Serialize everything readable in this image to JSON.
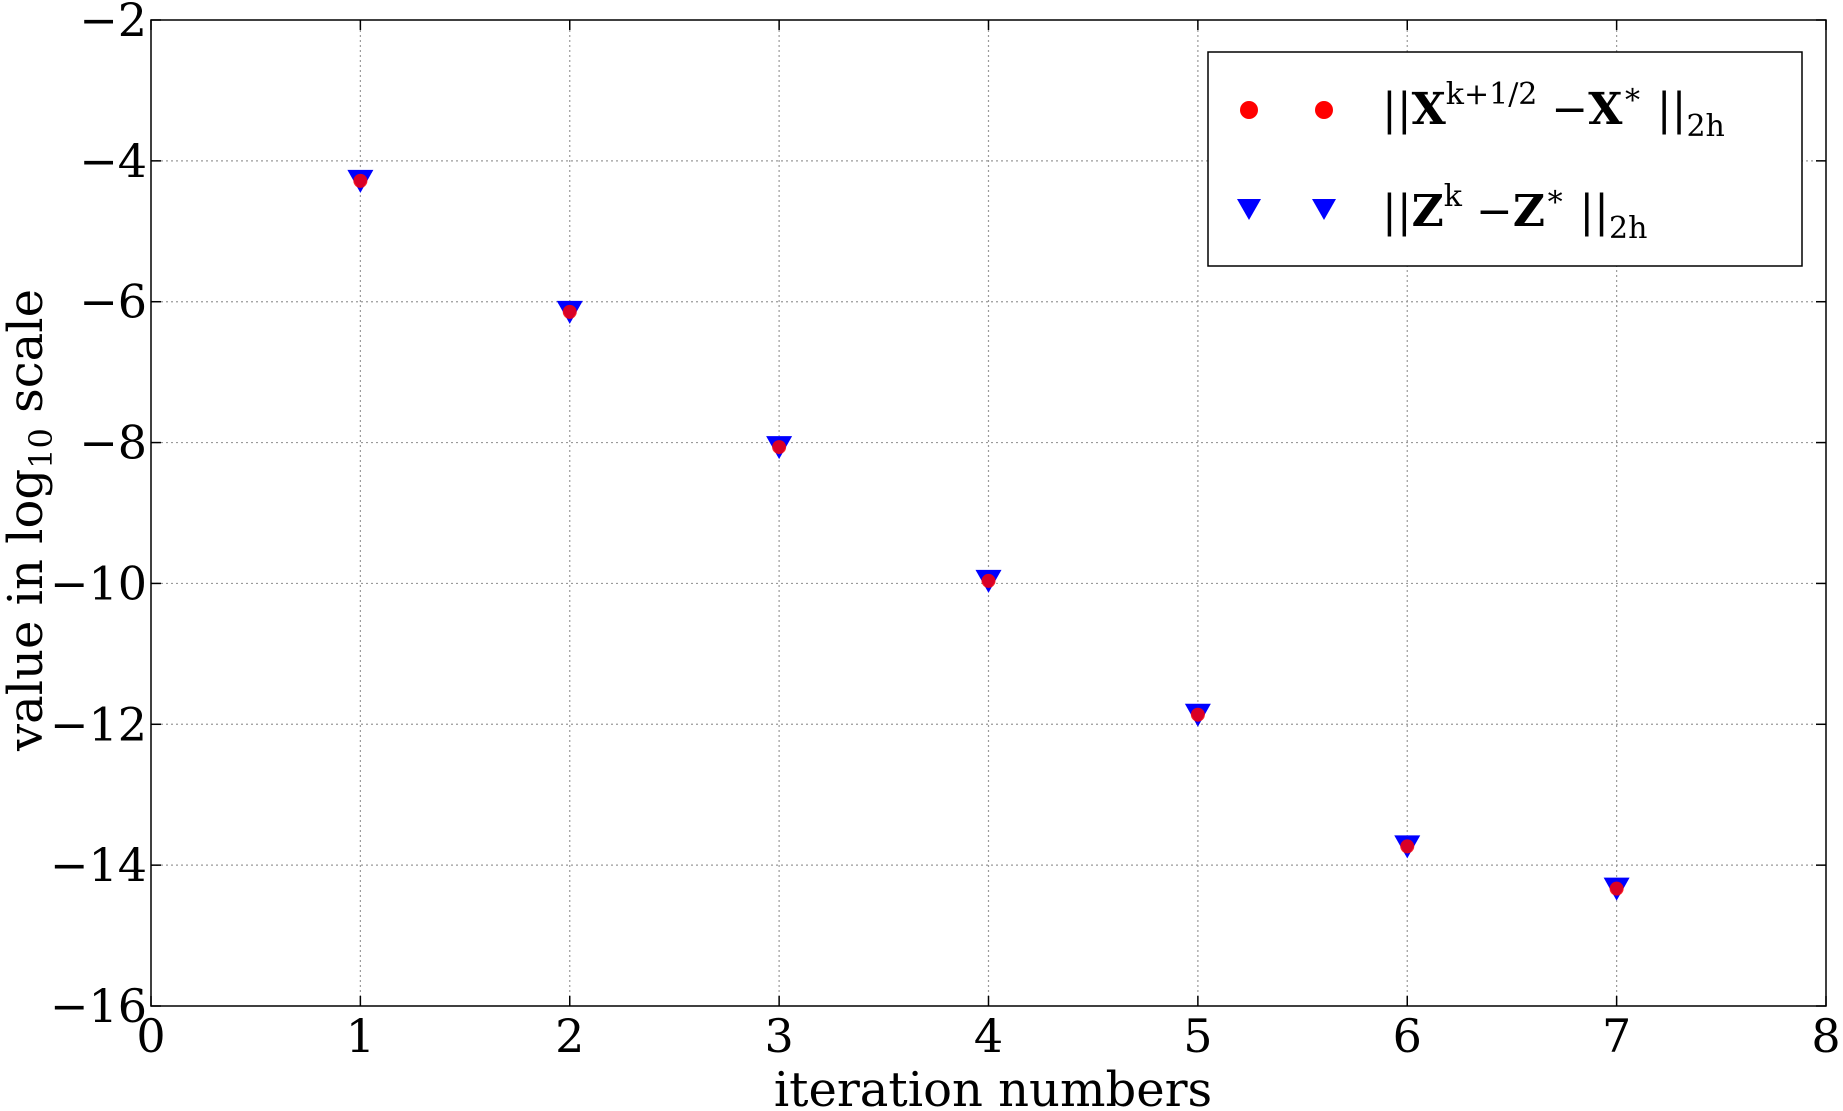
{
  "chart_data": {
    "type": "scatter",
    "title": "",
    "xlabel": "iteration numbers",
    "ylabel_parts": {
      "before": "value in log",
      "subscript": "10",
      "after": " scale"
    },
    "xlim": [
      0,
      8
    ],
    "ylim": [
      -16,
      -2
    ],
    "x_ticks": [
      0,
      1,
      2,
      3,
      4,
      5,
      6,
      7,
      8
    ],
    "y_ticks": [
      -16,
      -14,
      -12,
      -10,
      -8,
      -6,
      -4,
      -2
    ],
    "x_tick_labels": [
      "0",
      "1",
      "2",
      "3",
      "4",
      "5",
      "6",
      "7",
      "8"
    ],
    "y_tick_labels": [
      "−16",
      "−14",
      "−12",
      "−10",
      "−8",
      "−6",
      "−4",
      "−2"
    ],
    "grid": true,
    "legend_position": "top-right",
    "series": [
      {
        "name": "||X^{k+1/2} − X*||_{2h}",
        "marker": "circle",
        "color": "#ff0000",
        "x": [
          1,
          2,
          3,
          4,
          5,
          6,
          7
        ],
        "values": [
          -4.27,
          -6.13,
          -8.05,
          -9.95,
          -11.85,
          -13.72,
          -14.32
        ],
        "legend_parts": {
          "open": "||",
          "a": "X",
          "sup_a": "k+1/2",
          "minus": " −",
          "b": "X",
          "sup_b": "∗",
          "close": " ||",
          "sub": "2h"
        }
      },
      {
        "name": "||Z^k − Z*||_{2h}",
        "marker": "triangle-down",
        "color": "#0000ff",
        "x": [
          1,
          2,
          3,
          4,
          5,
          6,
          7
        ],
        "values": [
          -4.27,
          -6.13,
          -8.05,
          -9.95,
          -11.85,
          -13.72,
          -14.32
        ],
        "legend_parts": {
          "open": "||",
          "a": "Z",
          "sup_a": "k",
          "minus": " −",
          "b": "Z",
          "sup_b": "∗",
          "close": " ||",
          "sub": "2h"
        }
      }
    ]
  }
}
